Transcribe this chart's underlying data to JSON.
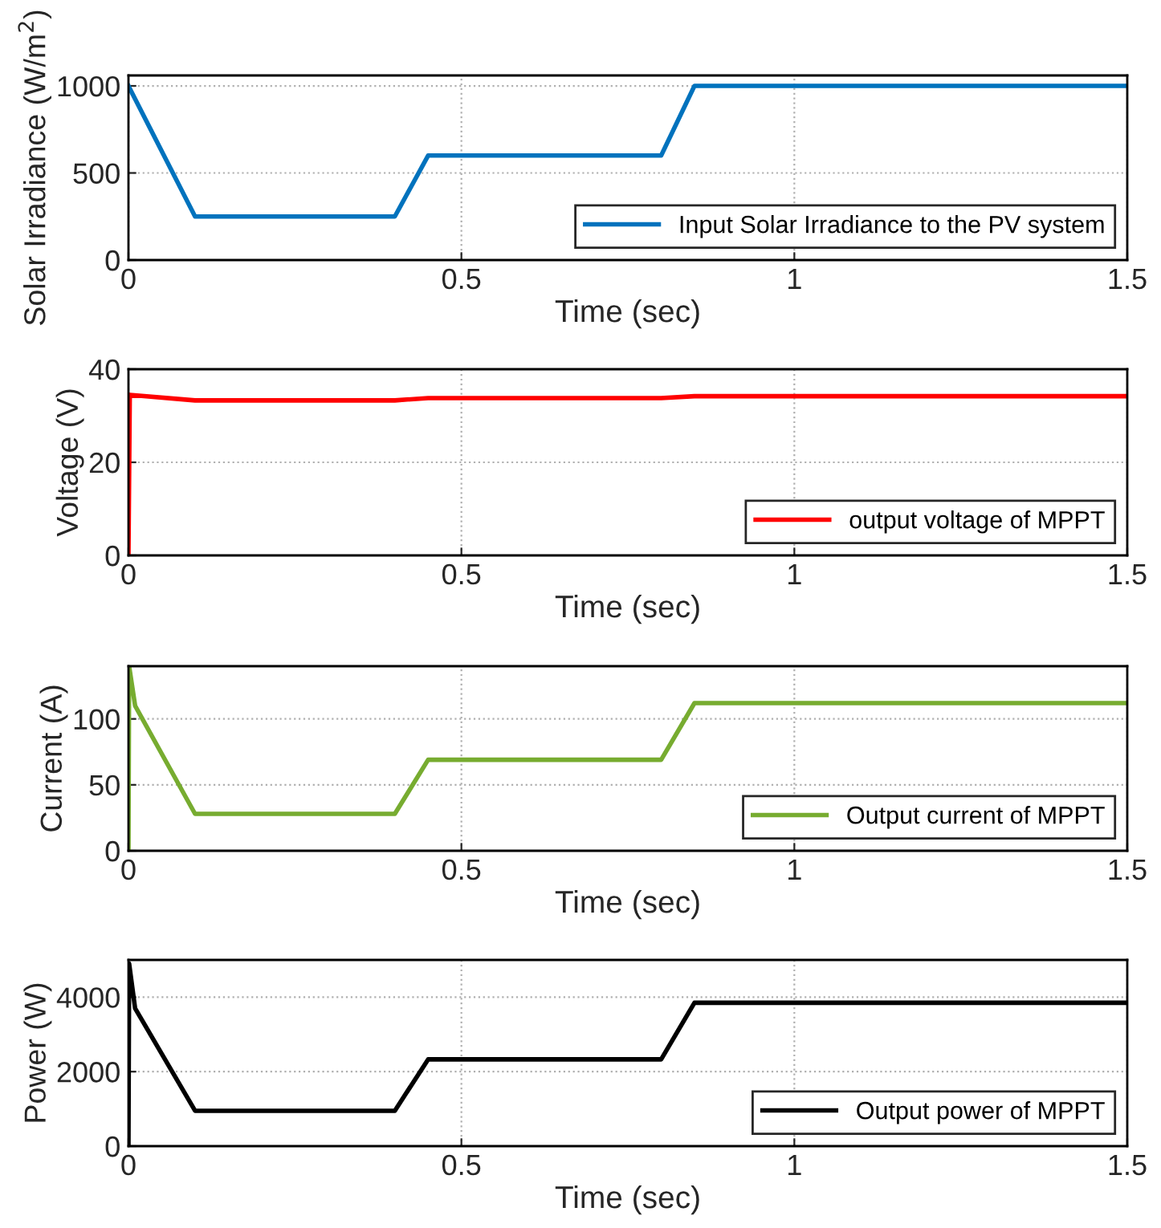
{
  "chart_data": [
    {
      "type": "line",
      "xlabel": "Time (sec)",
      "ylabel": "Solar Irradiance (W/m$^{2}$)",
      "x": [
        0,
        0.1,
        0.4,
        0.45,
        0.8,
        0.85,
        1.5
      ],
      "series": [
        {
          "name": "Input Solar Irradiance to the PV system",
          "color": "#0072bd",
          "values": [
            1000,
            250,
            250,
            600,
            600,
            1000,
            1000
          ]
        }
      ],
      "xlim": [
        0,
        1.5
      ],
      "xticks": [
        0,
        0.5,
        1,
        1.5
      ],
      "ylim": [
        0,
        1060
      ],
      "yticks": [
        0,
        500,
        1000
      ],
      "grid": true,
      "legend": "bottom right"
    },
    {
      "type": "line",
      "xlabel": "Time (sec)",
      "ylabel": "Voltage (V)",
      "x": [
        0,
        0.002,
        0.1,
        0.4,
        0.45,
        0.8,
        0.85,
        1.5
      ],
      "series": [
        {
          "name": "output voltage of MPPT",
          "color": "#ff0000",
          "values": [
            0,
            34.5,
            33.3,
            33.3,
            33.8,
            33.8,
            34.2,
            34.2
          ]
        }
      ],
      "xlim": [
        0,
        1.5
      ],
      "xticks": [
        0,
        0.5,
        1,
        1.5
      ],
      "ylim": [
        0,
        40
      ],
      "yticks": [
        0,
        20,
        40
      ],
      "grid": true,
      "legend": "bottom right"
    },
    {
      "type": "line",
      "xlabel": "Time (sec)",
      "ylabel": "Current (A)",
      "x": [
        0,
        0.001,
        0.01,
        0.1,
        0.4,
        0.45,
        0.8,
        0.85,
        1.5
      ],
      "series": [
        {
          "name": "Output current of MPPT",
          "color": "#77ac30",
          "values": [
            0,
            140,
            110,
            28,
            28,
            69,
            69,
            112,
            112
          ]
        }
      ],
      "xlim": [
        0,
        1.5
      ],
      "xticks": [
        0,
        0.5,
        1,
        1.5
      ],
      "ylim": [
        0,
        140
      ],
      "yticks": [
        0,
        50,
        100
      ],
      "grid": true,
      "legend": "bottom right"
    },
    {
      "type": "line",
      "xlabel": "Time (sec)",
      "ylabel": "Power (W)",
      "x": [
        0,
        0.001,
        0.01,
        0.1,
        0.4,
        0.45,
        0.8,
        0.85,
        1.5
      ],
      "series": [
        {
          "name": "Output power of MPPT",
          "color": "#000000",
          "values": [
            0,
            4900,
            3700,
            950,
            950,
            2330,
            2330,
            3850,
            3850
          ]
        }
      ],
      "xlim": [
        0,
        1.5
      ],
      "xticks": [
        0,
        0.5,
        1,
        1.5
      ],
      "ylim": [
        0,
        5000
      ],
      "yticks": [
        0,
        2000,
        4000
      ],
      "grid": true,
      "legend": "bottom right"
    }
  ]
}
